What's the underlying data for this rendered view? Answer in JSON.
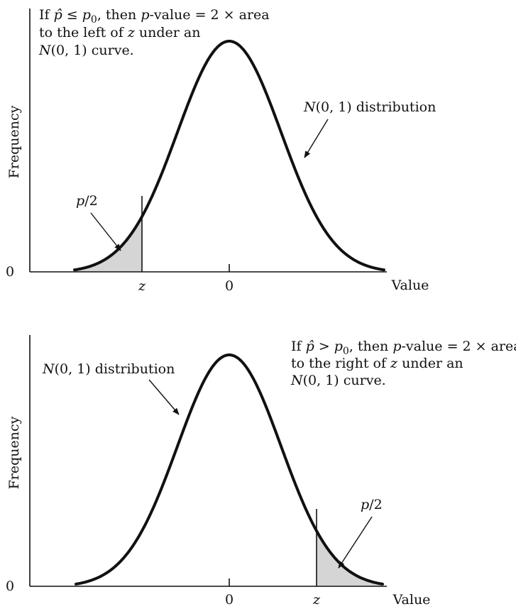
{
  "panels": [
    {
      "ylabel": "Frequency",
      "y_zero": "0",
      "xlabel": "Value",
      "tick_z": "z",
      "tick_zero": "0",
      "note": {
        "l1_pre": "If ",
        "l1_phat": "p̂",
        "l1_cmp": " ≤ ",
        "l1_p0": "p",
        "l1_p0sub": "0",
        "l1_mid": ", then ",
        "l1_pval_p": "p",
        "l1_post": "-value = 2 × area",
        "l2_pre": "to the left of ",
        "l2_z": "z",
        "l2_post": " under an",
        "l3_N": "N",
        "l3_post": "(0, 1) curve."
      },
      "dist_label_N": "N",
      "dist_label_rest": "(0, 1) distribution",
      "area_p": "p",
      "area_rest": "/2",
      "tail": "left"
    },
    {
      "ylabel": "Frequency",
      "y_zero": "0",
      "xlabel": "Value",
      "tick_z": "z",
      "tick_zero": "0",
      "note": {
        "l1_pre": "If ",
        "l1_phat": "p̂",
        "l1_cmp": " > ",
        "l1_p0": "p",
        "l1_p0sub": "0",
        "l1_mid": ", then ",
        "l1_pval_p": "p",
        "l1_post": "-value = 2 × area",
        "l2_pre": "to the right of ",
        "l2_z": "z",
        "l2_post": " under an",
        "l3_N": "N",
        "l3_post": "(0, 1) curve."
      },
      "dist_label_N": "N",
      "dist_label_rest": "(0, 1) distribution",
      "area_p": "p",
      "area_rest": "/2",
      "tail": "right"
    }
  ]
}
